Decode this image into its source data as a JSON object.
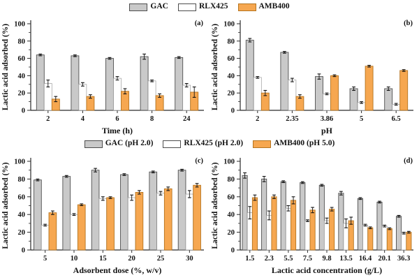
{
  "figure": {
    "legend_top": [
      {
        "label": "GAC",
        "fill": "#c9c9c9",
        "stroke": "#4d4d4d"
      },
      {
        "label": "RLX425",
        "fill": "#ffffff",
        "stroke": "#4d4d4d"
      },
      {
        "label": "AMB400",
        "fill": "#f6a750",
        "stroke": "#b5741f"
      }
    ],
    "legend_bottom": [
      {
        "label": "GAC (pH 2.0)",
        "fill": "#c9c9c9",
        "stroke": "#4d4d4d"
      },
      {
        "label": "RLX425 (pH 2.0)",
        "fill": "#ffffff",
        "stroke": "#4d4d4d"
      },
      {
        "label": "AMB400 (pH 5.0)",
        "fill": "#f6a750",
        "stroke": "#b5741f"
      }
    ]
  },
  "series_styles": {
    "GAC": {
      "fill": "#c9c9c9",
      "stroke": "#4f4f4f",
      "stroke_width": 0.9
    },
    "RLX425": {
      "fill": "#ffffff",
      "stroke": "#9b9b9b",
      "stroke_width": 0.7
    },
    "AMB400": {
      "fill": "#f6a750",
      "stroke": "#b5741f",
      "stroke_width": 0.9
    }
  },
  "style": {
    "axis_color": "#2b2b2b",
    "error_bar_color": "#111111"
  },
  "chart_data": [
    {
      "type": "bar",
      "panel_label": "(a)",
      "xlabel": "Time (h)",
      "ylabel": "Lactic acid adsorbed (%)",
      "ylim": [
        0,
        100
      ],
      "yticks": [
        0,
        20,
        40,
        60,
        80,
        100
      ],
      "grid": false,
      "categories": [
        "2",
        "4",
        "6",
        "8",
        "24"
      ],
      "series": [
        {
          "name": "GAC",
          "values": [
            64,
            63,
            60,
            62,
            61
          ],
          "errors": [
            1,
            1,
            1,
            3,
            1
          ]
        },
        {
          "name": "RLX425",
          "values": [
            31,
            30,
            37,
            34,
            29
          ],
          "errors": [
            4,
            2,
            2,
            1,
            2
          ]
        },
        {
          "name": "AMB400",
          "values": [
            13,
            16,
            22,
            17,
            21
          ],
          "errors": [
            3,
            2,
            3,
            2,
            6
          ]
        }
      ]
    },
    {
      "type": "bar",
      "panel_label": "(b)",
      "xlabel": "pH",
      "ylabel": "Lactic acid adsorbed (%)",
      "ylim": [
        0,
        100
      ],
      "yticks": [
        0,
        20,
        40,
        60,
        80,
        100
      ],
      "grid": false,
      "categories": [
        "2",
        "2.35",
        "3.86",
        "5",
        "6.5"
      ],
      "series": [
        {
          "name": "GAC",
          "values": [
            81,
            67,
            39,
            25,
            25
          ],
          "errors": [
            2,
            1,
            3,
            2,
            2
          ]
        },
        {
          "name": "RLX425",
          "values": [
            38,
            35,
            19,
            9,
            7
          ],
          "errors": [
            1,
            2,
            1,
            1,
            1
          ]
        },
        {
          "name": "AMB400",
          "values": [
            20,
            16,
            40,
            51,
            46
          ],
          "errors": [
            3,
            2,
            1,
            1,
            1
          ]
        }
      ]
    },
    {
      "type": "bar",
      "panel_label": "(c)",
      "xlabel": "Adsorbent dose (%, w/v)",
      "ylabel": "Lactic acid adsorbed (%)",
      "ylim": [
        0,
        100
      ],
      "yticks": [
        0,
        20,
        40,
        60,
        80,
        100
      ],
      "grid": false,
      "categories": [
        "5",
        "10",
        "15",
        "20",
        "25",
        "30"
      ],
      "series": [
        {
          "name": "GAC",
          "values": [
            79,
            83,
            90,
            85,
            88,
            90
          ],
          "errors": [
            1,
            1,
            2,
            1,
            1,
            1
          ]
        },
        {
          "name": "RLX425",
          "values": [
            28,
            40,
            58,
            59,
            64,
            63
          ],
          "errors": [
            1,
            1,
            2,
            3,
            2,
            4
          ]
        },
        {
          "name": "AMB400",
          "values": [
            42,
            51,
            59,
            65,
            69,
            73
          ],
          "errors": [
            2,
            1,
            1,
            2,
            2,
            2
          ]
        }
      ]
    },
    {
      "type": "bar",
      "panel_label": "(d)",
      "xlabel": "Lactic acid concentration (g/L)",
      "ylabel": "Lactic acid adsorbed (%)",
      "ylim": [
        0,
        100
      ],
      "yticks": [
        0,
        20,
        40,
        60,
        80,
        100
      ],
      "grid": false,
      "categories": [
        "1.5",
        "2.3",
        "5.5",
        "7.5",
        "9.8",
        "13.5",
        "16.4",
        "20.1",
        "36.3"
      ],
      "series": [
        {
          "name": "GAC",
          "values": [
            84,
            80,
            77,
            76,
            73,
            64,
            58,
            54,
            38
          ],
          "errors": [
            3,
            3,
            1,
            1,
            1,
            2,
            1,
            1,
            1
          ]
        },
        {
          "name": "RLX425",
          "values": [
            42,
            39,
            47,
            33,
            33,
            30,
            28,
            27,
            19
          ],
          "errors": [
            7,
            5,
            3,
            1,
            3,
            5,
            1,
            1,
            1
          ]
        },
        {
          "name": "AMB400",
          "values": [
            59,
            60,
            56,
            45,
            46,
            33,
            25,
            24,
            20
          ],
          "errors": [
            3,
            2,
            4,
            3,
            2,
            4,
            1,
            1,
            1
          ]
        }
      ]
    }
  ]
}
